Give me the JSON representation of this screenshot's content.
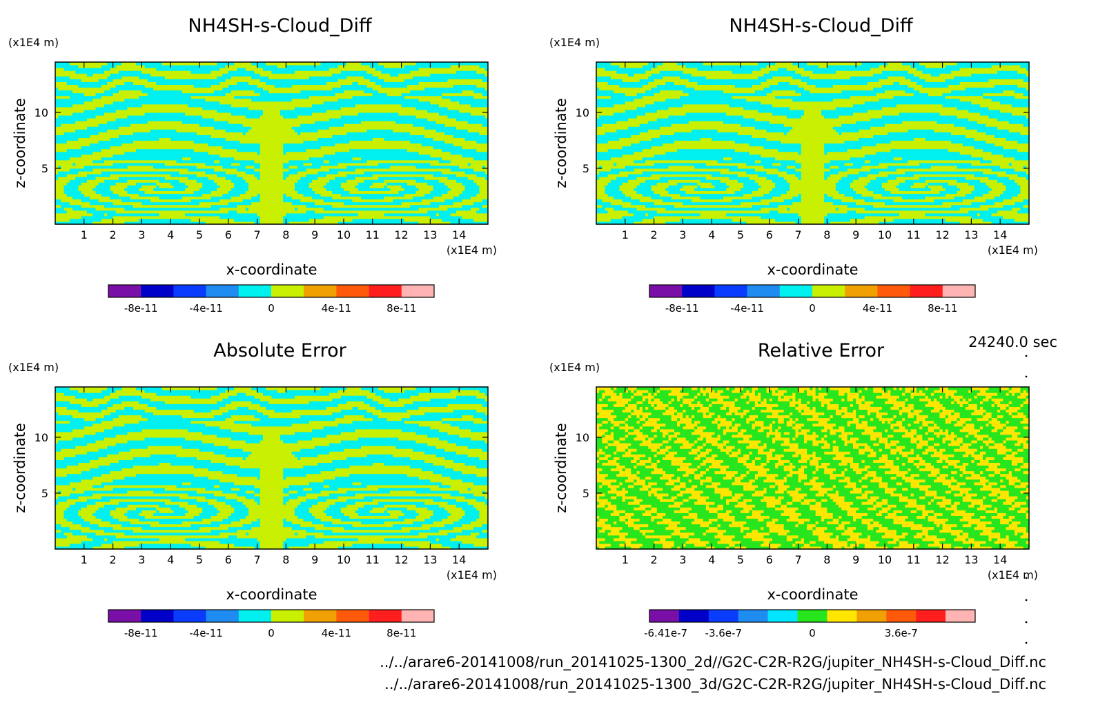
{
  "time_label": "24240.0 sec",
  "footer": {
    "path_2d": "../../arare6-20141008/run_20141025-1300_2d//G2C-C2R-R2G/jupiter_NH4SH-s-Cloud_Diff.nc",
    "path_3d": "../../arare6-20141008/run_20141025-1300_3d/G2C-C2R-R2G/jupiter_NH4SH-s-Cloud_Diff.nc"
  },
  "palette": {
    "diff": [
      "#7a0fa8",
      "#0000c8",
      "#0a3cff",
      "#1e8cf0",
      "#00f0f0",
      "#c8f000",
      "#f0a000",
      "#ff5a0a",
      "#ff1e1e",
      "#ffb4b4"
    ],
    "rel": [
      "#7a0fa8",
      "#0000c8",
      "#0a3cff",
      "#1e8cf0",
      "#00e6ff",
      "#28e61e",
      "#ffe600",
      "#f0a000",
      "#ff5a0a",
      "#ff1e1e",
      "#ffb4b4"
    ]
  },
  "chart_data": [
    {
      "type": "heatmap",
      "title": "NH4SH-s-Cloud_Diff",
      "xlabel": "x-coordinate",
      "ylabel": "z-coordinate",
      "x_unit": "(x1E4 m)",
      "y_unit": "(x1E4 m)",
      "xlim": [
        0,
        15
      ],
      "ylim": [
        0,
        14.5
      ],
      "x_ticks": [
        1,
        2,
        3,
        4,
        5,
        6,
        7,
        8,
        9,
        10,
        11,
        12,
        13,
        14
      ],
      "y_ticks": [
        5,
        10
      ],
      "field_colors": [
        "#00f0f0",
        "#c8f000"
      ],
      "colorbar": {
        "min": -1e-10,
        "max": 1e-10,
        "levels": 10,
        "tick_values": [
          -8e-11,
          -4e-11,
          0,
          4e-11,
          8e-11
        ],
        "tick_labels": [
          "-8e-11",
          "-4e-11",
          "0",
          "4e-11",
          "8e-11"
        ]
      }
    },
    {
      "type": "heatmap",
      "title": "NH4SH-s-Cloud_Diff",
      "xlabel": "x-coordinate",
      "ylabel": "z-coordinate",
      "x_unit": "(x1E4 m)",
      "y_unit": "(x1E4 m)",
      "xlim": [
        0,
        15
      ],
      "ylim": [
        0,
        14.5
      ],
      "x_ticks": [
        1,
        2,
        3,
        4,
        5,
        6,
        7,
        8,
        9,
        10,
        11,
        12,
        13,
        14
      ],
      "y_ticks": [
        5,
        10
      ],
      "field_colors": [
        "#00f0f0",
        "#c8f000"
      ],
      "colorbar": {
        "min": -1e-10,
        "max": 1e-10,
        "levels": 10,
        "tick_values": [
          -8e-11,
          -4e-11,
          0,
          4e-11,
          8e-11
        ],
        "tick_labels": [
          "-8e-11",
          "-4e-11",
          "0",
          "4e-11",
          "8e-11"
        ]
      }
    },
    {
      "type": "heatmap",
      "title": "Absolute Error",
      "xlabel": "x-coordinate",
      "ylabel": "z-coordinate",
      "x_unit": "(x1E4 m)",
      "y_unit": "(x1E4 m)",
      "xlim": [
        0,
        15
      ],
      "ylim": [
        0,
        14.5
      ],
      "x_ticks": [
        1,
        2,
        3,
        4,
        5,
        6,
        7,
        8,
        9,
        10,
        11,
        12,
        13,
        14
      ],
      "y_ticks": [
        5,
        10
      ],
      "field_colors": [
        "#00f0f0",
        "#c8f000"
      ],
      "colorbar": {
        "min": -1e-10,
        "max": 1e-10,
        "levels": 10,
        "tick_values": [
          -8e-11,
          -4e-11,
          0,
          4e-11,
          8e-11
        ],
        "tick_labels": [
          "-8e-11",
          "-4e-11",
          "0",
          "4e-11",
          "8e-11"
        ]
      }
    },
    {
      "type": "heatmap",
      "title": "Relative Error",
      "xlabel": "x-coordinate",
      "ylabel": "z-coordinate",
      "x_unit": "(x1E4 m)",
      "y_unit": "(x1E4 m)",
      "xlim": [
        0,
        15
      ],
      "ylim": [
        0,
        14.5
      ],
      "x_ticks": [
        1,
        2,
        3,
        4,
        5,
        6,
        7,
        8,
        9,
        10,
        11,
        12,
        13,
        14
      ],
      "y_ticks": [
        5,
        10
      ],
      "field_colors": [
        "#28e61e",
        "#ffe600"
      ],
      "colorbar": {
        "min": -6.41e-07,
        "max": 6.41e-07,
        "levels": 11,
        "tick_values": [
          -6.41e-07,
          -3.6e-07,
          0,
          3.6e-07
        ],
        "tick_labels": [
          "-6.41e-7",
          "-3.6e-7",
          "0",
          "3.6e-7"
        ]
      }
    }
  ]
}
